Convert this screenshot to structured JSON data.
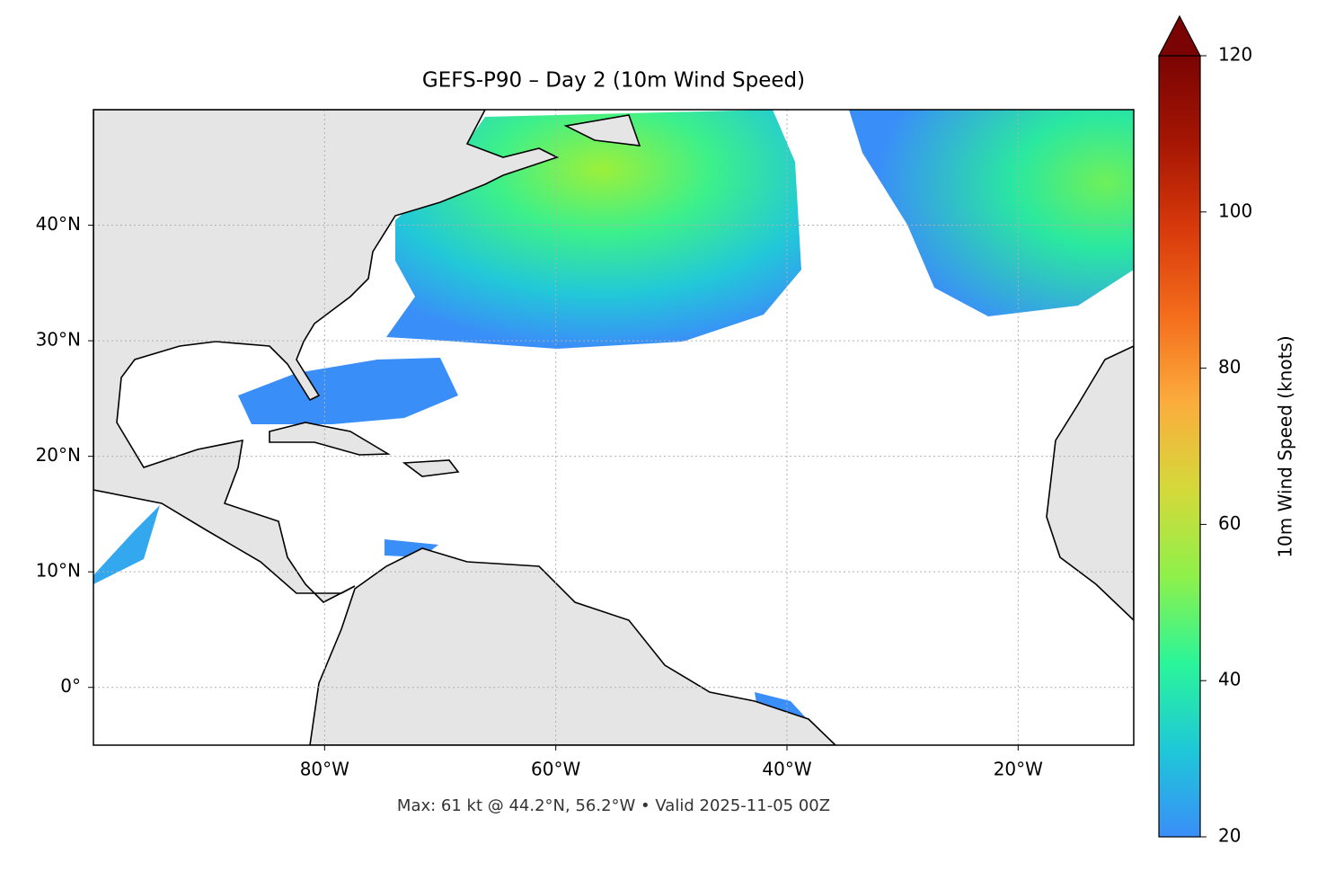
{
  "title": "GEFS-P90 – Day 2 (10m Wind Speed)",
  "map": {
    "xlim": [
      -100,
      -10
    ],
    "ylim": [
      -5,
      50
    ],
    "xticks": [
      {
        "value": -80,
        "label": "80°W"
      },
      {
        "value": -60,
        "label": "60°W"
      },
      {
        "value": -40,
        "label": "40°W"
      },
      {
        "value": -20,
        "label": "20°W"
      }
    ],
    "yticks": [
      {
        "value": 0,
        "label": "0°"
      },
      {
        "value": 10,
        "label": "10°N"
      },
      {
        "value": 20,
        "label": "20°N"
      },
      {
        "value": 30,
        "label": "30°N"
      },
      {
        "value": 40,
        "label": "40°N"
      }
    ],
    "grid": true
  },
  "colorbar": {
    "label": "10m Wind Speed (knots)",
    "lim": [
      20,
      120
    ],
    "ticks": [
      20,
      40,
      60,
      80,
      100,
      120
    ],
    "colors": [
      "#3a8ef8",
      "#1ec8d8",
      "#2af59a",
      "#8ff04a",
      "#d4d93a",
      "#fbad3d",
      "#f46d1c",
      "#d83a0b",
      "#a51603",
      "#7a0403"
    ]
  },
  "footer": "Max: 61 kt @ 44.2°N, 56.2°W • Valid 2025-11-05 00Z"
}
